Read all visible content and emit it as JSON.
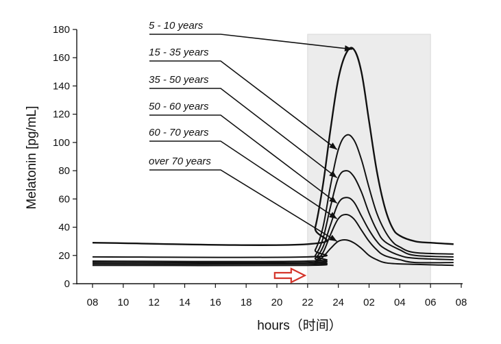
{
  "chart_data": {
    "type": "line",
    "xlabel": "hours（时间）",
    "ylabel": "Melatonin [pg/mL]",
    "x_ticks": [
      "08",
      "10",
      "12",
      "14",
      "16",
      "18",
      "20",
      "22",
      "24",
      "02",
      "04",
      "06",
      "08"
    ],
    "ylim": [
      0,
      180
    ],
    "y_ticks": [
      0,
      20,
      40,
      60,
      80,
      100,
      120,
      140,
      160,
      180
    ],
    "x_unit": "hours from 08:00",
    "night_shading": {
      "from": "22",
      "to": "06",
      "x_from": 14,
      "x_to": 22
    },
    "night_marker": "arrow pointing to 22",
    "series": [
      {
        "name": "5 - 10 years",
        "points": [
          [
            0,
            29
          ],
          [
            14,
            28
          ],
          [
            14.5,
            40
          ],
          [
            15,
            70
          ],
          [
            15.5,
            110
          ],
          [
            16,
            145
          ],
          [
            16.5,
            163
          ],
          [
            17,
            166
          ],
          [
            17.5,
            150
          ],
          [
            18,
            115
          ],
          [
            18.5,
            80
          ],
          [
            19,
            55
          ],
          [
            19.5,
            40
          ],
          [
            20,
            34
          ],
          [
            21,
            30
          ],
          [
            22,
            29
          ],
          [
            23.5,
            28
          ]
        ]
      },
      {
        "name": "15 - 35 years",
        "points": [
          [
            0,
            19
          ],
          [
            14,
            19
          ],
          [
            14.5,
            24
          ],
          [
            15,
            40
          ],
          [
            15.5,
            70
          ],
          [
            16,
            95
          ],
          [
            16.5,
            105
          ],
          [
            17,
            102
          ],
          [
            17.5,
            88
          ],
          [
            18,
            68
          ],
          [
            18.5,
            50
          ],
          [
            19,
            38
          ],
          [
            19.5,
            30
          ],
          [
            20,
            26
          ],
          [
            21,
            22
          ],
          [
            23.5,
            21
          ]
        ]
      },
      {
        "name": "35 - 50 years",
        "points": [
          [
            0,
            16
          ],
          [
            14,
            16
          ],
          [
            14.5,
            20
          ],
          [
            15,
            32
          ],
          [
            15.5,
            55
          ],
          [
            16,
            75
          ],
          [
            16.5,
            80
          ],
          [
            17,
            76
          ],
          [
            17.5,
            65
          ],
          [
            18,
            50
          ],
          [
            18.5,
            38
          ],
          [
            19,
            30
          ],
          [
            20,
            24
          ],
          [
            21,
            20
          ],
          [
            23.5,
            19
          ]
        ]
      },
      {
        "name": "50 - 60 years",
        "points": [
          [
            0,
            15
          ],
          [
            14,
            15
          ],
          [
            14.5,
            18
          ],
          [
            15,
            26
          ],
          [
            15.5,
            42
          ],
          [
            16,
            57
          ],
          [
            16.5,
            61
          ],
          [
            17,
            58
          ],
          [
            17.5,
            48
          ],
          [
            18,
            38
          ],
          [
            18.5,
            30
          ],
          [
            19,
            25
          ],
          [
            20,
            20
          ],
          [
            21,
            18
          ],
          [
            23.5,
            17
          ]
        ]
      },
      {
        "name": "60 - 70 years",
        "points": [
          [
            0,
            14
          ],
          [
            14,
            14
          ],
          [
            14.5,
            16
          ],
          [
            15,
            22
          ],
          [
            15.5,
            35
          ],
          [
            16,
            46
          ],
          [
            16.5,
            49
          ],
          [
            17,
            46
          ],
          [
            17.5,
            38
          ],
          [
            18,
            30
          ],
          [
            18.5,
            24
          ],
          [
            19,
            20
          ],
          [
            20,
            17
          ],
          [
            21,
            15
          ],
          [
            23.5,
            15
          ]
        ]
      },
      {
        "name": "over 70 years",
        "points": [
          [
            0,
            13
          ],
          [
            14,
            13
          ],
          [
            14.5,
            15
          ],
          [
            15,
            19
          ],
          [
            15.5,
            25
          ],
          [
            16,
            30
          ],
          [
            16.5,
            31
          ],
          [
            17,
            29
          ],
          [
            17.5,
            25
          ],
          [
            18,
            20
          ],
          [
            18.5,
            17
          ],
          [
            19,
            15
          ],
          [
            20,
            14
          ],
          [
            23.5,
            13
          ]
        ]
      }
    ],
    "legend_callouts": [
      {
        "label": "5 - 10 years",
        "target": [
          17,
          166
        ]
      },
      {
        "label": "15 - 35 years",
        "target": [
          16,
          95
        ]
      },
      {
        "label": "35 - 50 years",
        "target": [
          16,
          75
        ]
      },
      {
        "label": "50 - 60 years",
        "target": [
          16,
          57
        ]
      },
      {
        "label": "60 - 70 years",
        "target": [
          16,
          46
        ]
      },
      {
        "label": "over 70 years",
        "target": [
          16,
          30
        ]
      }
    ]
  }
}
